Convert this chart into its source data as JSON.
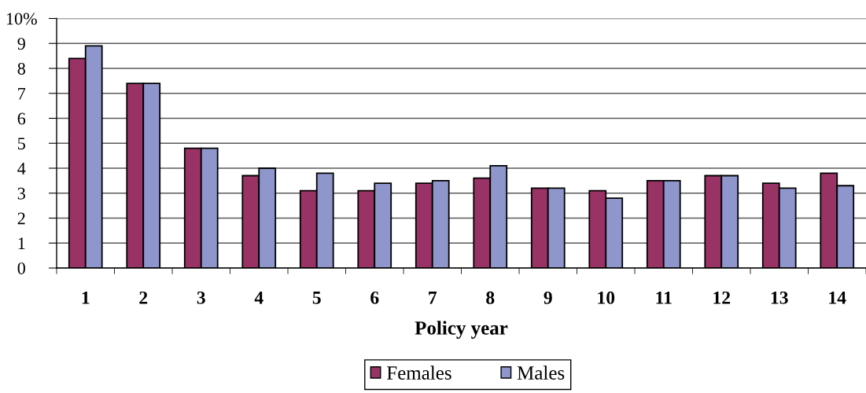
{
  "chart_data": {
    "type": "bar",
    "categories": [
      "1",
      "2",
      "3",
      "4",
      "5",
      "6",
      "7",
      "8",
      "9",
      "10",
      "11",
      "12",
      "13",
      "14"
    ],
    "series": [
      {
        "name": "Females",
        "color": "#993366",
        "values": [
          8.4,
          7.4,
          4.8,
          3.7,
          3.1,
          3.1,
          3.4,
          3.6,
          3.2,
          3.1,
          3.5,
          3.7,
          3.4,
          3.8
        ]
      },
      {
        "name": "Males",
        "color": "#8e96cc",
        "values": [
          8.9,
          7.4,
          4.8,
          4.0,
          3.8,
          3.4,
          3.5,
          4.1,
          3.2,
          2.8,
          3.5,
          3.7,
          3.2,
          3.3
        ]
      }
    ],
    "xlabel": "Policy year",
    "ylim": [
      0,
      10
    ],
    "yticks": [
      0,
      1,
      2,
      3,
      4,
      5,
      6,
      7,
      8,
      9,
      {
        "value": 10,
        "label": "10%"
      }
    ],
    "grid": "y",
    "legend": "bottom"
  }
}
